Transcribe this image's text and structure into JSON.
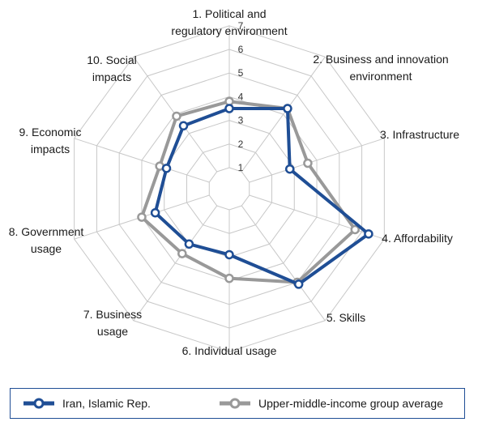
{
  "chart_data": {
    "type": "radar",
    "axes": [
      {
        "label_lines": [
          "1. Political and",
          "regulatory environment"
        ]
      },
      {
        "label_lines": [
          "2. Business and innovation",
          "environment"
        ]
      },
      {
        "label_lines": [
          "3. Infrastructure"
        ]
      },
      {
        "label_lines": [
          "4. Affordability"
        ]
      },
      {
        "label_lines": [
          "5. Skills"
        ]
      },
      {
        "label_lines": [
          "6. Individual usage"
        ]
      },
      {
        "label_lines": [
          "7. Business",
          "usage"
        ]
      },
      {
        "label_lines": [
          "8. Government",
          "usage"
        ]
      },
      {
        "label_lines": [
          "9. Economic",
          "impacts"
        ]
      },
      {
        "label_lines": [
          "10. Social",
          "impacts"
        ]
      }
    ],
    "rmin": 1,
    "rmax": 7,
    "ticks": [
      "1",
      "2",
      "3",
      "4",
      "5",
      "6",
      "7"
    ],
    "series": [
      {
        "name": "Iran, Islamic Rep.",
        "color": "#1f4e95",
        "values": [
          3.5,
          4.3,
          2.8,
          6.3,
          5.1,
          2.9,
          3.0,
          3.4,
          2.9,
          3.4
        ]
      },
      {
        "name": "Upper-middle-income group average",
        "color": "#999999",
        "values": [
          3.8,
          4.3,
          3.6,
          5.7,
          5.0,
          3.9,
          3.5,
          4.0,
          3.2,
          3.9
        ]
      }
    ],
    "legend_position": "bottom"
  }
}
